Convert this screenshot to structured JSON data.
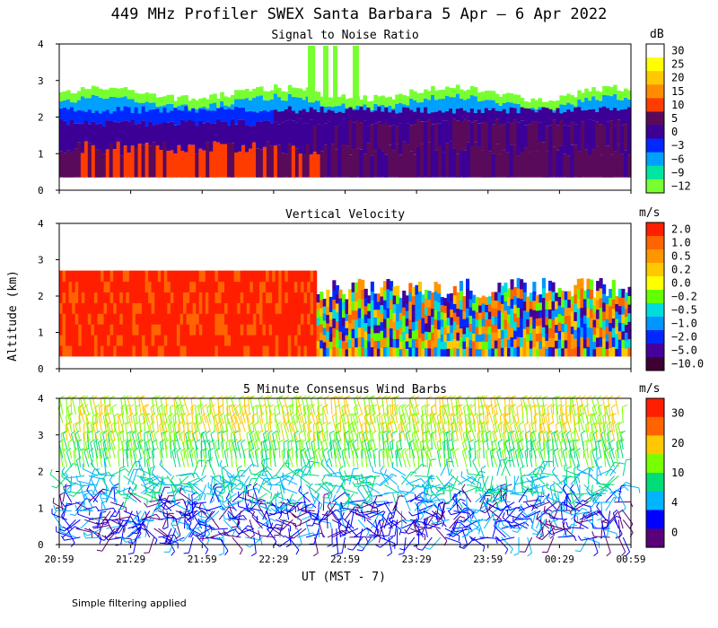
{
  "figure": {
    "title": "449 MHz Profiler SWEX Santa Barbara  5 Apr —  6 Apr 2022",
    "ylabel": "Altitude (km)",
    "xlabel": "UT  (MST - 7)",
    "note": "Simple filtering applied"
  },
  "chart_data": [
    {
      "type": "heatmap",
      "title": "Signal to Noise Ratio",
      "unit": "dB",
      "y_ticks": [
        0,
        1,
        2,
        3,
        4
      ],
      "ylim": [
        0,
        4
      ],
      "x_tick_labels": [
        "20:59",
        "21:29",
        "21:59",
        "22:29",
        "22:59",
        "23:29",
        "23:59",
        "00:29",
        "00:59"
      ],
      "colorbar": {
        "labels": [
          "30",
          "25",
          "20",
          "15",
          "10",
          "5",
          "0",
          "−3",
          "−6",
          "−9",
          "−12"
        ],
        "colors": [
          "#ffffff",
          "#ffff00",
          "#ffc800",
          "#ff8c00",
          "#ff3c00",
          "#5a0a5a",
          "#3c0096",
          "#0028ff",
          "#00a0ff",
          "#00e6a0",
          "#78ff32"
        ]
      }
    },
    {
      "type": "heatmap",
      "title": "Vertical Velocity",
      "unit": "m/s",
      "y_ticks": [
        0,
        1,
        2,
        3,
        4
      ],
      "ylim": [
        0,
        4
      ],
      "x_tick_labels": [
        "20:59",
        "21:29",
        "21:59",
        "22:29",
        "22:59",
        "23:29",
        "23:59",
        "00:29",
        "00:59"
      ],
      "colorbar": {
        "labels": [
          "2.0",
          "1.0",
          "0.5",
          "0.2",
          "0.0",
          "−0.2",
          "−0.5",
          "−1.0",
          "−2.0",
          "−5.0",
          "−10.0"
        ],
        "colors": [
          "#ff1e00",
          "#ff6400",
          "#ff9600",
          "#ffc800",
          "#ffff00",
          "#64ff00",
          "#00dcdc",
          "#0096ff",
          "#0028ff",
          "#46009b",
          "#3c0032"
        ]
      }
    },
    {
      "type": "scatter",
      "title": "5 Minute Consensus Wind Barbs",
      "unit": "m/s",
      "y_ticks": [
        0,
        1,
        2,
        3,
        4
      ],
      "ylim": [
        0,
        4
      ],
      "x_tick_labels": [
        "20:59",
        "21:29",
        "21:59",
        "22:29",
        "22:59",
        "23:29",
        "23:59",
        "00:29",
        "00:59"
      ],
      "colorbar": {
        "labels": [
          "30",
          "20",
          "10",
          "4",
          "0"
        ],
        "colors": [
          "#ff1e00",
          "#ff6400",
          "#ffc800",
          "#78ff00",
          "#00dc78",
          "#00b4ff",
          "#0000ff",
          "#5a0078"
        ]
      }
    }
  ]
}
